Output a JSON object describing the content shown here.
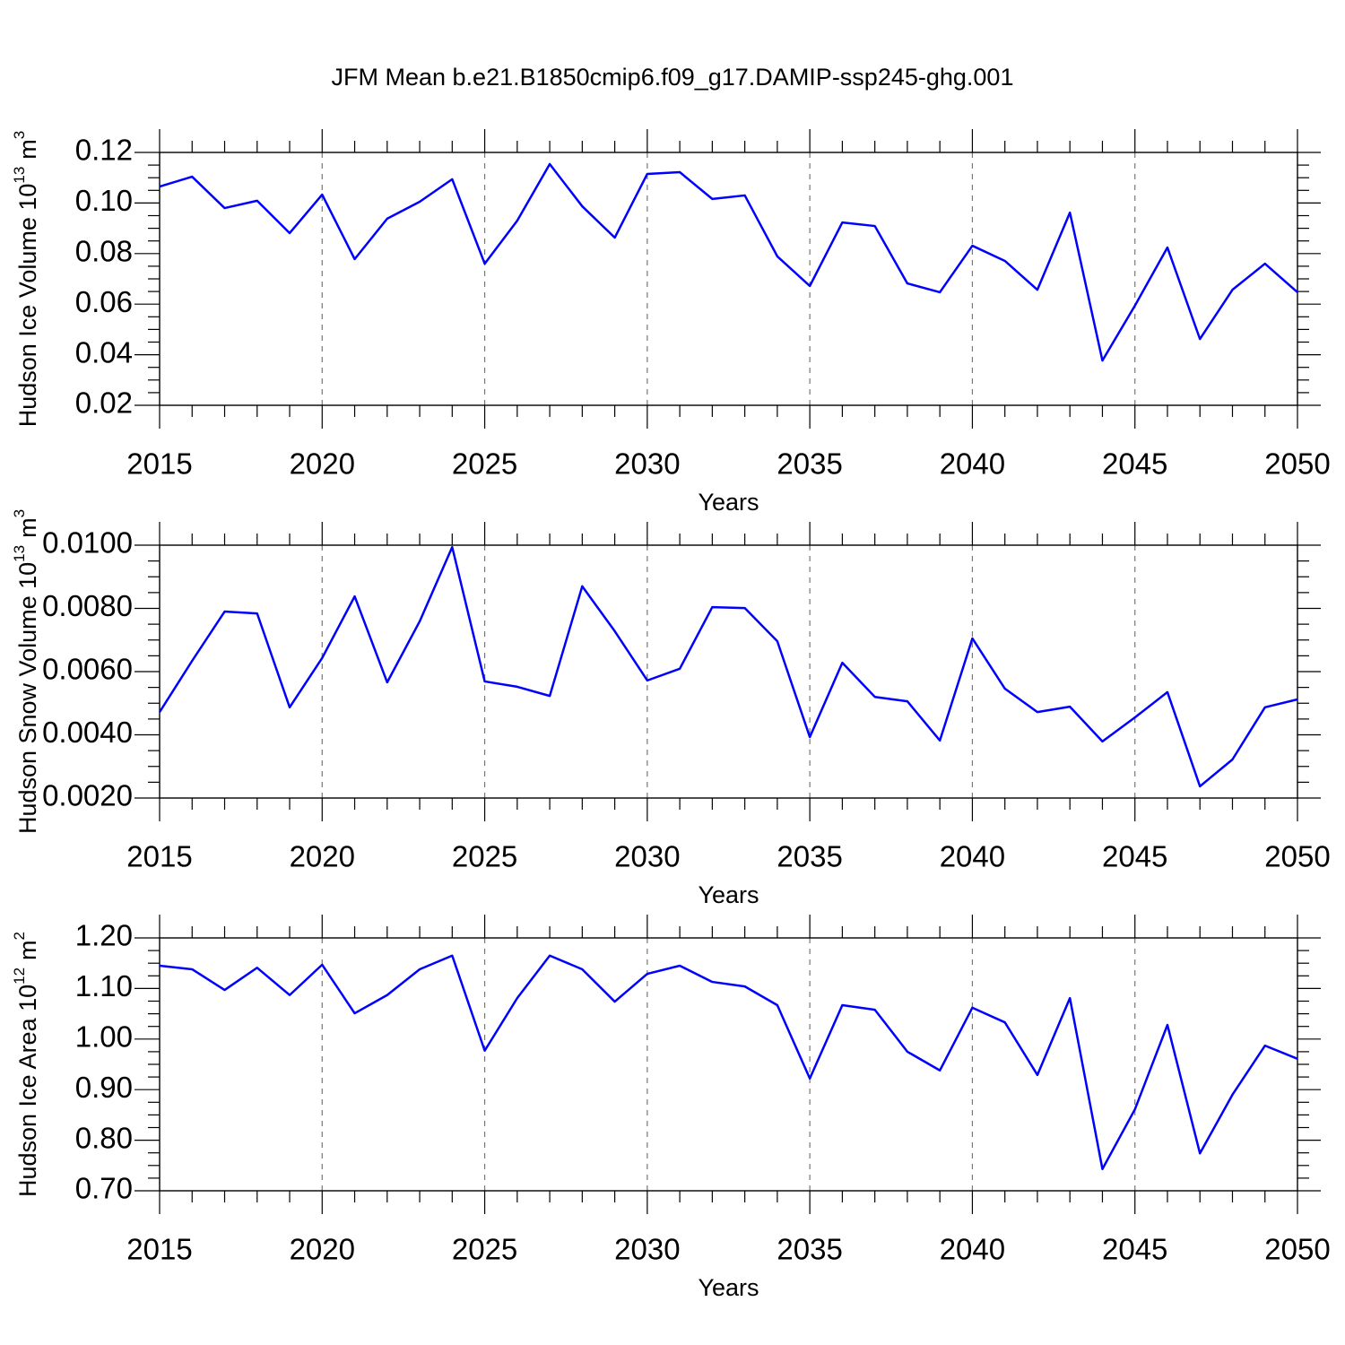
{
  "chart_data": [
    {
      "type": "line",
      "title": "JFM Mean b.e21.B1850cmip6.f09_g17.DAMIP-ssp245-ghg.001",
      "xlabel": "Years",
      "ylabel": "Hudson Ice Volume 10",
      "ylabel_exp": "13",
      "ylabel_unit": "m",
      "ylabel_unit_exp": "3",
      "color": "#0000ff",
      "grid_x": true,
      "x": [
        2015,
        2016,
        2017,
        2018,
        2019,
        2020,
        2021,
        2022,
        2023,
        2024,
        2025,
        2026,
        2027,
        2028,
        2029,
        2030,
        2031,
        2032,
        2033,
        2034,
        2035,
        2036,
        2037,
        2038,
        2039,
        2040,
        2041,
        2042,
        2043,
        2044,
        2045,
        2046,
        2047,
        2048,
        2049,
        2050
      ],
      "values": [
        0.1065,
        0.1104,
        0.098,
        0.1009,
        0.0881,
        0.1033,
        0.0778,
        0.0938,
        0.1005,
        0.1094,
        0.076,
        0.093,
        0.1154,
        0.0987,
        0.0863,
        0.1115,
        0.1122,
        0.1016,
        0.103,
        0.0789,
        0.0672,
        0.0923,
        0.0909,
        0.0682,
        0.0647,
        0.0831,
        0.0771,
        0.0657,
        0.0962,
        0.0377,
        0.0594,
        0.0824,
        0.0462,
        0.0657,
        0.076,
        0.0647
      ],
      "xlim": [
        2015,
        2050
      ],
      "xticks": [
        2015,
        2020,
        2025,
        2030,
        2035,
        2040,
        2045,
        2050
      ],
      "ylim": [
        0.02,
        0.12
      ],
      "yticks": [
        0.12,
        {
          "value": 0.1,
          "label": "0.10"
        },
        0.08,
        0.06,
        0.04,
        0.02
      ]
    },
    {
      "type": "line",
      "xlabel": "Years",
      "ylabel": "Hudson Snow Volume 10",
      "ylabel_exp": "13",
      "ylabel_unit": "m",
      "ylabel_unit_exp": "3",
      "color": "#0000ff",
      "grid_x": true,
      "x": [
        2015,
        2016,
        2017,
        2018,
        2019,
        2020,
        2021,
        2022,
        2023,
        2024,
        2025,
        2026,
        2027,
        2028,
        2029,
        2030,
        2031,
        2032,
        2033,
        2034,
        2035,
        2036,
        2037,
        2038,
        2039,
        2040,
        2041,
        2042,
        2043,
        2044,
        2045,
        2046,
        2047,
        2048,
        2049,
        2050
      ],
      "values": [
        0.00472,
        0.00634,
        0.0079,
        0.00784,
        0.00487,
        0.00643,
        0.00838,
        0.00566,
        0.00759,
        0.00994,
        0.00569,
        0.00552,
        0.00523,
        0.0087,
        0.00728,
        0.00572,
        0.00609,
        0.00804,
        0.00801,
        0.00696,
        0.00393,
        0.00628,
        0.0052,
        0.00506,
        0.00382,
        0.00705,
        0.00546,
        0.00472,
        0.00489,
        0.00379,
        0.00455,
        0.00535,
        0.00237,
        0.00322,
        0.00487,
        0.00512
      ],
      "xlim": [
        2015,
        2050
      ],
      "xticks": [
        2015,
        2020,
        2025,
        2030,
        2035,
        2040,
        2045,
        2050
      ],
      "ylim": [
        0.002,
        0.01
      ],
      "yticks": [
        {
          "value": 0.01,
          "label": "0.0100"
        },
        {
          "value": 0.008,
          "label": "0.0080"
        },
        {
          "value": 0.006,
          "label": "0.0060"
        },
        {
          "value": 0.004,
          "label": "0.0040"
        },
        {
          "value": 0.002,
          "label": "0.0020"
        }
      ]
    },
    {
      "type": "line",
      "xlabel": "Years",
      "ylabel": "Hudson Ice Area 10",
      "ylabel_exp": "12",
      "ylabel_unit": "m",
      "ylabel_unit_exp": "2",
      "color": "#0000ff",
      "grid_x": true,
      "x": [
        2015,
        2016,
        2017,
        2018,
        2019,
        2020,
        2021,
        2022,
        2023,
        2024,
        2025,
        2026,
        2027,
        2028,
        2029,
        2030,
        2031,
        2032,
        2033,
        2034,
        2035,
        2036,
        2037,
        2038,
        2039,
        2040,
        2041,
        2042,
        2043,
        2044,
        2045,
        2046,
        2047,
        2048,
        2049,
        2050
      ],
      "values": [
        1.145,
        1.138,
        1.097,
        1.141,
        1.087,
        1.147,
        1.051,
        1.087,
        1.138,
        1.165,
        0.977,
        1.081,
        1.165,
        1.138,
        1.074,
        1.129,
        1.145,
        1.113,
        1.104,
        1.067,
        0.922,
        1.067,
        1.058,
        0.975,
        0.938,
        1.062,
        1.033,
        0.929,
        1.081,
        0.743,
        0.861,
        1.028,
        0.774,
        0.89,
        0.987,
        0.961
      ],
      "xlim": [
        2015,
        2050
      ],
      "xticks": [
        2015,
        2020,
        2025,
        2030,
        2035,
        2040,
        2045,
        2050
      ],
      "ylim": [
        0.7,
        1.2
      ],
      "yticks": [
        {
          "value": 1.2,
          "label": "1.20"
        },
        {
          "value": 1.1,
          "label": "1.10"
        },
        {
          "value": 1.0,
          "label": "1.00"
        },
        {
          "value": 0.9,
          "label": "0.90"
        },
        {
          "value": 0.8,
          "label": "0.80"
        },
        {
          "value": 0.7,
          "label": "0.70"
        }
      ]
    }
  ]
}
